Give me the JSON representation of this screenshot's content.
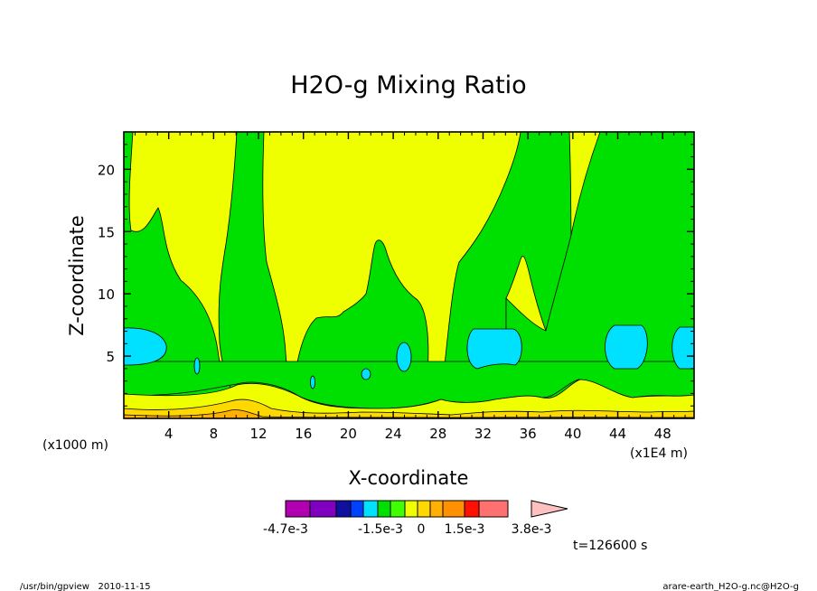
{
  "chart_data": {
    "type": "contour",
    "title": "H2O-g Mixing Ratio",
    "xlabel": "X-coordinate",
    "ylabel": "Z-coordinate",
    "x_unit_label": "(x1E4 m)",
    "y_unit_label": "(x1000 m)",
    "xlim": [
      0,
      50.8
    ],
    "ylim": [
      0,
      23
    ],
    "x_ticks": [
      4,
      8,
      12,
      16,
      20,
      24,
      28,
      32,
      36,
      40,
      44,
      48
    ],
    "y_ticks": [
      5,
      10,
      15,
      20
    ],
    "colorbar": {
      "colors": [
        "#b000b0",
        "#8000c0",
        "#1010a0",
        "#0040ff",
        "#00e0ff",
        "#00e000",
        "#40ff00",
        "#f0ff00",
        "#ffd800",
        "#ffb000",
        "#ff9000",
        "#ff1000",
        "#ff7070",
        "#ffc0c0"
      ],
      "labels": [
        "-4.7e-3",
        "-1.5e-3",
        "0",
        "1.5e-3",
        "3.8e-3"
      ]
    },
    "time_label": "t=126600 s",
    "footer_left": "/usr/bin/gpview   2010-11-15",
    "footer_right": "arare-earth_H2O-g.nc@H2O-g"
  }
}
